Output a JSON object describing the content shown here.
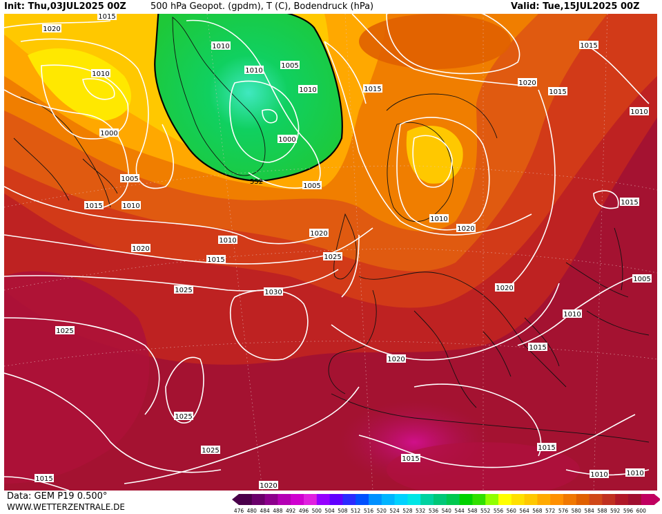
{
  "header": {
    "init": "Init: Thu,03JUL2025 00Z",
    "title": "500 hPa Geopot. (gpdm), T (C), Bodendruck (hPa)",
    "valid": "Valid: Tue,15JUL2025 00Z"
  },
  "footer": {
    "data": "Data: GEM P19 0.500°",
    "site": "WWW.WETTERZENTRALE.DE"
  },
  "colorbar": {
    "values": [
      "476",
      "480",
      "484",
      "488",
      "492",
      "496",
      "500",
      "504",
      "508",
      "512",
      "516",
      "520",
      "524",
      "528",
      "532",
      "536",
      "540",
      "544",
      "548",
      "552",
      "556",
      "560",
      "564",
      "568",
      "572",
      "576",
      "580",
      "584",
      "588",
      "592",
      "596",
      "600"
    ],
    "colors": [
      "#4a004a",
      "#6a006a",
      "#8c008c",
      "#b400b4",
      "#d000d0",
      "#e020e0",
      "#9600ff",
      "#6000ff",
      "#2a2aff",
      "#0050ff",
      "#0090ff",
      "#00b4ff",
      "#00d2ff",
      "#00e6e6",
      "#00d2a0",
      "#00c878",
      "#00c850",
      "#00d200",
      "#30e000",
      "#90ff00",
      "#ffff00",
      "#ffe000",
      "#ffc800",
      "#ffaa00",
      "#ff9000",
      "#f07800",
      "#e06000",
      "#d04818",
      "#c03020",
      "#b01828",
      "#a01030",
      "#c00060"
    ]
  },
  "map": {
    "centers": [
      {
        "label": "552"
      }
    ],
    "isobars": [
      {
        "label": "1015"
      },
      {
        "label": "1020"
      },
      {
        "label": "1010"
      },
      {
        "label": "1010"
      },
      {
        "label": "1005"
      },
      {
        "label": "1010"
      },
      {
        "label": "1000"
      },
      {
        "label": "1005"
      },
      {
        "label": "1015"
      },
      {
        "label": "1010"
      },
      {
        "label": "1010"
      },
      {
        "label": "1005"
      },
      {
        "label": "1010"
      },
      {
        "label": "1000"
      },
      {
        "label": "1015"
      },
      {
        "label": "1020"
      },
      {
        "label": "1015"
      },
      {
        "label": "1010"
      },
      {
        "label": "1020"
      },
      {
        "label": "1025"
      },
      {
        "label": "1015"
      },
      {
        "label": "1020"
      },
      {
        "label": "1025"
      },
      {
        "label": "1030"
      },
      {
        "label": "1025"
      },
      {
        "label": "1020"
      },
      {
        "label": "1025"
      },
      {
        "label": "1020"
      },
      {
        "label": "1015"
      },
      {
        "label": "1020"
      },
      {
        "label": "1015"
      },
      {
        "label": "1010"
      },
      {
        "label": "1015"
      },
      {
        "label": "1025"
      },
      {
        "label": "1020"
      },
      {
        "label": "1010"
      },
      {
        "label": "1005"
      },
      {
        "label": "1015"
      },
      {
        "label": "1015"
      },
      {
        "label": "1010"
      },
      {
        "label": "1010"
      },
      {
        "label": "1020"
      },
      {
        "label": "1015"
      }
    ]
  }
}
